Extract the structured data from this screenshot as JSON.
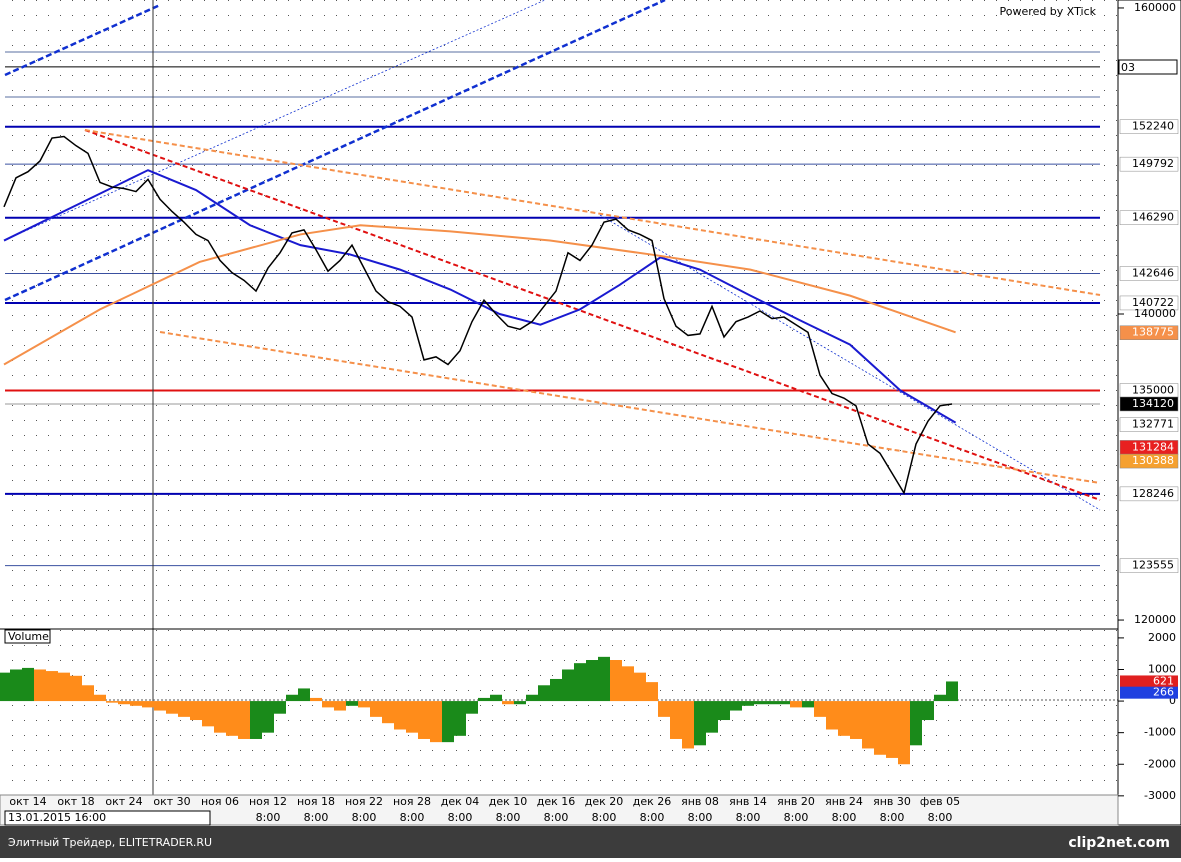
{
  "header": {
    "powered_by": "Powered by XTick",
    "top_tag": "03"
  },
  "chart_data": [
    {
      "type": "line",
      "categories": [
        null,
        null,
        "окт 14",
        null,
        null,
        null,
        "окт 18",
        null,
        null,
        null,
        "окт 24",
        null,
        null,
        null,
        "окт 30",
        null,
        null,
        null,
        "ноя 06",
        null,
        null,
        null,
        "ноя 12",
        null,
        null,
        null,
        "ноя 18",
        null,
        null,
        null,
        "ноя 22",
        null,
        null,
        null,
        "ноя 28",
        null,
        null,
        null,
        "дек 04",
        null,
        null,
        null,
        "дек 10",
        null,
        null,
        null,
        "дек 16",
        null,
        null,
        null,
        "дек 20",
        null,
        null,
        null,
        "дек 26",
        null,
        null,
        null,
        "янв 08",
        null,
        null,
        null,
        "янв 14",
        null,
        null,
        null,
        "янв 20",
        null,
        null,
        null,
        "янв 24",
        null,
        null,
        null,
        "янв 30",
        null,
        null,
        null,
        "фев 05",
        null
      ],
      "time_labels": [
        null,
        null,
        null,
        null,
        null,
        null,
        null,
        null,
        null,
        null,
        null,
        null,
        null,
        null,
        null,
        null,
        null,
        null,
        null,
        null,
        null,
        null,
        "8:00",
        null,
        null,
        null,
        "8:00",
        null,
        null,
        null,
        "8:00",
        null,
        null,
        null,
        "8:00",
        null,
        null,
        null,
        "8:00",
        null,
        null,
        null,
        "8:00",
        null,
        null,
        null,
        "8:00",
        null,
        null,
        null,
        "8:00",
        null,
        null,
        null,
        "8:00",
        null,
        null,
        null,
        "8:00",
        null,
        null,
        null,
        "8:00",
        null,
        null,
        null,
        "8:00",
        null,
        null,
        null,
        "8:00",
        null,
        null,
        null,
        "8:00",
        null,
        null,
        null,
        "8:00",
        null
      ],
      "cursor_label": "13.01.2015 16:00",
      "series": [
        {
          "color": "#000000",
          "values": [
            147000,
            148900,
            149300,
            150000,
            151500,
            151600,
            151000,
            150500,
            148600,
            148300,
            148200,
            148000,
            148800,
            147500,
            146700,
            146000,
            145200,
            144800,
            143500,
            142700,
            142200,
            141500,
            143000,
            144000,
            145300,
            145500,
            144200,
            142800,
            143500,
            144500,
            143000,
            141500,
            140800,
            140500,
            139800,
            137000,
            137200,
            136700,
            137600,
            139500,
            140900,
            140000,
            139200,
            139000,
            139500,
            140500,
            141500,
            144000,
            143500,
            144500,
            146000,
            146200,
            145500,
            145200,
            144800,
            141000,
            139200,
            138600,
            138700,
            140500,
            138500,
            139500,
            139800,
            140200,
            139700,
            139800,
            139300,
            138800,
            136000,
            134800,
            134500,
            134000,
            131500,
            130900,
            129600,
            128300,
            131500,
            133000,
            134000,
            134120
          ]
        }
      ],
      "moving_averages": [
        {
          "color": "#1a1ad0",
          "x": [
            0,
            12,
            16,
            20.5,
            24.7,
            28.8,
            33,
            37.2,
            41.3,
            44.7,
            48,
            51.3,
            54.7,
            58,
            62.2,
            66.3,
            70.5,
            74.7,
            79.3
          ],
          "values": [
            144800,
            149400,
            148100,
            145800,
            144500,
            143900,
            142900,
            141600,
            140000,
            139300,
            140300,
            141900,
            143700,
            142900,
            141200,
            139600,
            138000,
            135000,
            132900
          ]
        },
        {
          "color": "#f5904a",
          "x": [
            0,
            8,
            16.3,
            24.7,
            29.7,
            37.2,
            45.5,
            53.8,
            62.2,
            70.5,
            79.3
          ],
          "values": [
            136700,
            140300,
            143400,
            145200,
            145800,
            145400,
            144800,
            143900,
            142900,
            141200,
            138800
          ]
        }
      ],
      "levels": [
        {
          "value": 157120,
          "color": "#5a6fa0",
          "width": 1,
          "labeled": false
        },
        {
          "value": 156150,
          "color": "#000000",
          "width": 1,
          "labeled": false
        },
        {
          "value": 154180,
          "color": "#5a6fa0",
          "width": 1,
          "labeled": false
        },
        {
          "value": 152240,
          "color": "#0000b0",
          "width": 2,
          "labeled": true
        },
        {
          "value": 149792,
          "color": "#3a50a0",
          "width": 1,
          "labeled": true
        },
        {
          "value": 146290,
          "color": "#0000b0",
          "width": 2,
          "labeled": true
        },
        {
          "value": 142646,
          "color": "#3a50a0",
          "width": 1,
          "labeled": true
        },
        {
          "value": 140722,
          "color": "#0000b0",
          "width": 2,
          "labeled": true
        },
        {
          "value": 138775,
          "color": "#f5904a",
          "width": 0,
          "labeled": true,
          "tag_color": "#f5904a",
          "text_color": "#ffffff"
        },
        {
          "value": 135000,
          "color": "#e01010",
          "width": 2,
          "labeled": true
        },
        {
          "value": 134120,
          "color": "#999999",
          "width": 1,
          "labeled": true,
          "tag_color": "#000000",
          "text_color": "#ffffff"
        },
        {
          "value": 132771,
          "color": "#1a1ad0",
          "width": 0,
          "labeled": true
        },
        {
          "value": 131284,
          "color": "#e01010",
          "width": 0,
          "labeled": true,
          "tag_color": "#e82020",
          "text_color": "#ffffff"
        },
        {
          "value": 130388,
          "color": "#f5904a",
          "width": 0,
          "labeled": true,
          "tag_color": "#f5a030",
          "text_color": "#ffffff"
        },
        {
          "value": 128246,
          "color": "#0000b0",
          "width": 2,
          "labeled": true
        },
        {
          "value": 123555,
          "color": "#3a50a0",
          "width": 1,
          "labeled": true
        }
      ],
      "ylim": [
        119480,
        160520
      ],
      "yticks": [
        160000,
        140000,
        120000
      ],
      "grid": true
    },
    {
      "type": "bar",
      "title": "Volume",
      "values": [
        900,
        1000,
        1050,
        1000,
        950,
        900,
        800,
        500,
        200,
        -50,
        -100,
        -150,
        -200,
        -300,
        -400,
        -500,
        -600,
        -800,
        -1000,
        -1100,
        -1200,
        -1200,
        -1000,
        -400,
        200,
        400,
        100,
        -200,
        -300,
        -150,
        -200,
        -500,
        -700,
        -900,
        -1000,
        -1200,
        -1300,
        -1300,
        -1100,
        -400,
        100,
        200,
        -100,
        -100,
        200,
        500,
        700,
        1000,
        1200,
        1300,
        1400,
        1300,
        1100,
        900,
        600,
        -500,
        -1200,
        -1500,
        -1400,
        -1000,
        -600,
        -300,
        -150,
        -100,
        -100,
        -100,
        -200,
        -200,
        -500,
        -900,
        -1100,
        -1200,
        -1500,
        -1700,
        -1800,
        -2000,
        -1400,
        -600,
        200,
        621
      ],
      "up_color": "#1a8a1a",
      "down_color": "#ff8c1a",
      "value_tags": [
        {
          "value": 621,
          "color": "#e02020"
        },
        {
          "value": 266,
          "color": "#2040e0"
        }
      ],
      "ylim": [
        -3290,
        2250
      ],
      "yticks": [
        2000,
        1000,
        0,
        -1000,
        -2000,
        -3000
      ]
    }
  ],
  "footer": {
    "left": "Элитный Трейдер, ELITETRADER.RU",
    "right": "clip2net.com"
  }
}
